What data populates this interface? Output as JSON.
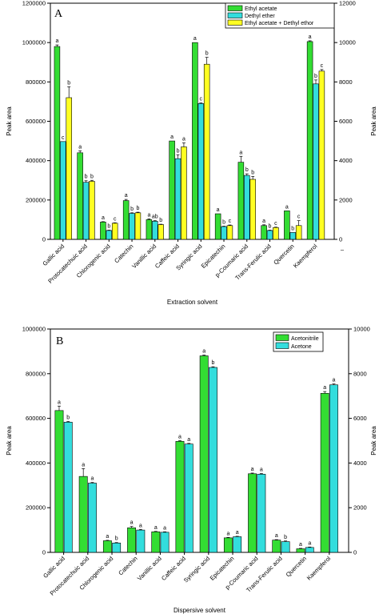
{
  "chart_data": [
    {
      "type": "bar",
      "panel_label": "A",
      "xlabel": "Extraction solvent",
      "ylabel": "Peak area",
      "ylabel_right": "Peak area",
      "ylim": [
        0,
        1200000
      ],
      "ylim_right": [
        0,
        12000
      ],
      "yticks": [
        "0",
        "200000",
        "400000",
        "600000",
        "800000",
        "1000000",
        "1200000"
      ],
      "yticks_right": [
        "0",
        "2000",
        "4000",
        "6000",
        "8000",
        "10000",
        "12000"
      ],
      "extra_tick": "–",
      "legend_position": "top-right",
      "categories": [
        "Gallic acid",
        "Protocatechuic acid",
        "Chlorogenic acid",
        "Catechin",
        "Vanillic acid",
        "Caffeic acid",
        "Syringic acid",
        "Epicatechin",
        "p-Coumaric acid",
        "Trans-Ferulic acid",
        "Quercetin",
        "Kaempferol"
      ],
      "series": [
        {
          "name": "Ethyl acetate",
          "color": "#33dd33",
          "values": [
            980000,
            440000,
            88000,
            197000,
            100000,
            500000,
            1000000,
            130000,
            392000,
            70000,
            145000,
            1005000
          ],
          "errors": [
            8000,
            10000,
            2000,
            6000,
            4000,
            0,
            0,
            0,
            30000,
            4000,
            0,
            4000
          ],
          "labels": [
            "a",
            "a",
            "a",
            "a",
            "a",
            "a",
            "a",
            "a",
            "a",
            "a",
            "a",
            "a"
          ]
        },
        {
          "name": "Dethyl ether",
          "color": "#33dddd",
          "values": [
            497000,
            290000,
            45000,
            132000,
            92000,
            410000,
            690000,
            65000,
            325000,
            45000,
            35000,
            790000
          ],
          "errors": [
            0,
            8000,
            2000,
            3000,
            3000,
            20000,
            3000,
            2000,
            8000,
            2000,
            0,
            20000
          ],
          "labels": [
            "c",
            "b",
            "b",
            "b",
            "ab",
            "b",
            "c",
            "b",
            "b",
            "b",
            "b",
            "b"
          ]
        },
        {
          "name": "Ethyl acetate + Dethyl ethor",
          "color": "#ffff22",
          "values": [
            720000,
            295000,
            82000,
            135000,
            75000,
            470000,
            890000,
            70000,
            305000,
            60000,
            70000,
            855000
          ],
          "errors": [
            55000,
            5000,
            2000,
            3000,
            2000,
            20000,
            35000,
            3000,
            15000,
            2000,
            25000,
            8000
          ],
          "labels": [
            "b",
            "b",
            "c",
            "b",
            "b",
            "a",
            "b",
            "c",
            "b",
            "c",
            "c",
            "c"
          ]
        }
      ]
    },
    {
      "type": "bar",
      "panel_label": "B",
      "xlabel": "Dispersive solvent",
      "ylabel": "Peak area",
      "ylabel_right": "Peak area",
      "ylim": [
        0,
        1000000
      ],
      "ylim_right": [
        0,
        10000
      ],
      "yticks": [
        "0",
        "200000",
        "400000",
        "600000",
        "800000",
        "1000000"
      ],
      "yticks_right": [
        "0",
        "2000",
        "4000",
        "6000",
        "8000",
        "10000"
      ],
      "legend_position": "top-right",
      "categories": [
        "Gallic acid",
        "Protocatechuic acid",
        "Chlorogenic acid",
        "Catechin",
        "Vanillic acid",
        "Caffeic acid",
        "Syringic acid",
        "Epicatechin",
        "p-Coumaric acid",
        "Trans-Ferulic acid",
        "Quercetin",
        "Kaempferol"
      ],
      "series": [
        {
          "name": "Acetonitrile",
          "color": "#33dd33",
          "values": [
            635000,
            340000,
            52000,
            110000,
            92000,
            497000,
            880000,
            65000,
            352000,
            55000,
            16000,
            712000
          ],
          "errors": [
            20000,
            35000,
            2000,
            6000,
            2000,
            3000,
            3000,
            2000,
            3000,
            2000,
            2000,
            8000
          ],
          "labels": [
            "a",
            "a",
            "a",
            "a",
            "a",
            "a",
            "a",
            "a",
            "a",
            "a",
            "a",
            "a"
          ]
        },
        {
          "name": "Acetone",
          "color": "#33dddd",
          "values": [
            583000,
            310000,
            42000,
            100000,
            90000,
            485000,
            828000,
            70000,
            350000,
            48000,
            22000,
            750000
          ],
          "errors": [
            3000,
            3000,
            2000,
            3000,
            2000,
            3000,
            3000,
            2000,
            3000,
            3000,
            2000,
            4000
          ],
          "labels": [
            "b",
            "a",
            "b",
            "a",
            "a",
            "a",
            "b",
            "a",
            "a",
            "b",
            "a",
            "a"
          ]
        }
      ]
    }
  ]
}
